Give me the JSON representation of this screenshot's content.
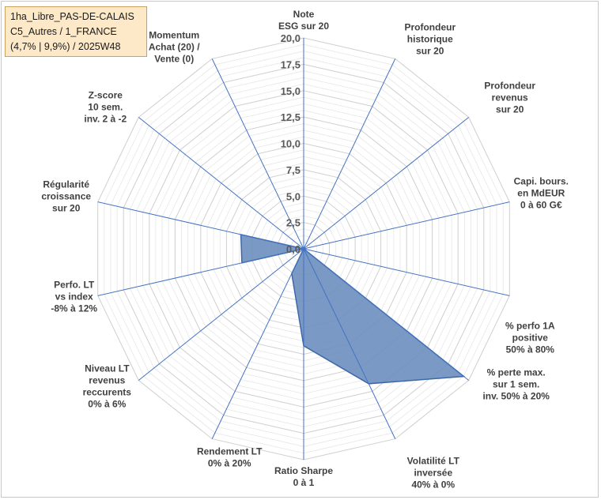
{
  "info_box": {
    "line1": "1ha_Libre_PAS-DE-CALAIS",
    "line2": "C5_Autres / 1_FRANCE",
    "line3": "(4,7% | 9,9%) / 2025W48"
  },
  "chart_data": {
    "type": "radar",
    "rlim": [
      0,
      20
    ],
    "ticks": [
      "0,0",
      "2,5",
      "5,0",
      "7,5",
      "10,0",
      "12,5",
      "15,0",
      "17,5",
      "20,0"
    ],
    "tick_values": [
      0,
      2.5,
      5,
      7.5,
      10,
      12.5,
      15,
      17.5,
      20
    ],
    "axes": [
      {
        "label": [
          "Note",
          "ESG sur 20"
        ]
      },
      {
        "label": [
          "Profondeur",
          "historique",
          "sur 20"
        ]
      },
      {
        "label": [
          "Profondeur",
          "revenus",
          "sur 20"
        ]
      },
      {
        "label": [
          "Capi. bours.",
          "en MdEUR",
          "0 à 60 G€"
        ]
      },
      {
        "label": [
          "% perfo 1A",
          "positive",
          "50% à 80%"
        ]
      },
      {
        "label": [
          "% perte max.",
          "sur 1 sem.",
          "inv. 50% à 20%"
        ]
      },
      {
        "label": [
          "Volatilité LT",
          "inversée",
          "40% à 0%"
        ]
      },
      {
        "label": [
          "Ratio Sharpe",
          "0 à 1"
        ]
      },
      {
        "label": [
          "Rendement LT",
          "0% à 20%"
        ]
      },
      {
        "label": [
          "Niveau LT",
          "revenus",
          "reccurents",
          "0% à 6%"
        ]
      },
      {
        "label": [
          "Perfo. LT",
          "vs index",
          "-8% à 12%"
        ]
      },
      {
        "label": [
          "Régularité",
          "croissance",
          "sur 20"
        ]
      },
      {
        "label": [
          "Z-score",
          "10 sem.",
          "inv. 2 à -2"
        ]
      },
      {
        "label": [
          "Momentum",
          "Achat (20) /",
          "Vente (0)"
        ]
      }
    ],
    "series": [
      {
        "values": [
          0,
          0,
          0,
          0,
          0,
          19.4,
          14.2,
          9.2,
          2.6,
          0,
          6.0,
          6.1,
          0,
          0
        ],
        "fill": "#6b8fbf",
        "stroke": "#3d68a8"
      }
    ],
    "grid_color": "#d9d9d9",
    "spoke_color": "#4472c4"
  }
}
